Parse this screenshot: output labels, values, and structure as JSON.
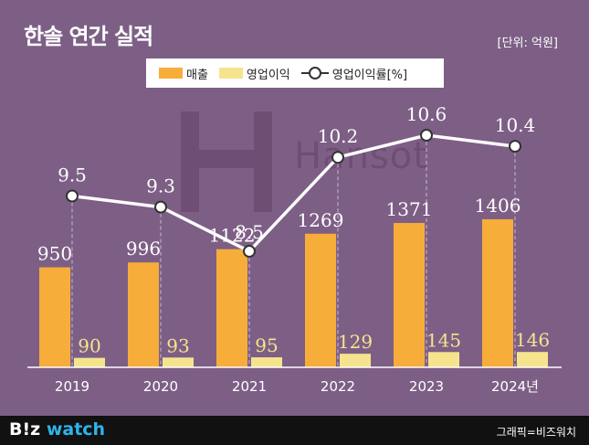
{
  "header": {
    "title": "한솔 연간 실적",
    "unit": "[단위: 억원]"
  },
  "legend": {
    "revenue": "매출",
    "operating_profit": "영업이익",
    "margin": "영업이익률[%]"
  },
  "watermark": "Hansot",
  "footer": {
    "brand_part1": "B!z",
    "brand_part2": " watch",
    "credit": "그래픽=비즈워치"
  },
  "colors": {
    "background": "#7d5f86",
    "revenue_bar": "#f7ad3a",
    "operating_profit_bar": "#f5e48d",
    "margin_line": "#ffffff",
    "footer": "#111111",
    "brand_accent": "#2fb4e9"
  },
  "chart_data": {
    "type": "bar",
    "categories": [
      "2019",
      "2020",
      "2021",
      "2022",
      "2023",
      "2024년"
    ],
    "series": [
      {
        "name": "매출",
        "type": "bar",
        "values": [
          950,
          996,
          1122,
          1269,
          1371,
          1406
        ]
      },
      {
        "name": "영업이익",
        "type": "bar",
        "values": [
          90,
          93,
          95,
          129,
          145,
          146
        ]
      },
      {
        "name": "영업이익률[%]",
        "type": "line",
        "values": [
          9.5,
          9.3,
          8.5,
          10.2,
          10.6,
          10.4
        ]
      }
    ],
    "labels": {
      "revenue": [
        "950",
        "996",
        "1122",
        "1269",
        "1371",
        "1406"
      ],
      "operating_profit": [
        "90",
        "93",
        "95",
        "129",
        "145",
        "146"
      ],
      "margin": [
        "9.5",
        "9.3",
        "8.5",
        "10.2",
        "10.6",
        "10.4"
      ]
    },
    "title": "한솔 연간 실적",
    "xlabel": "",
    "ylabel": "",
    "ylim": [
      0,
      1450
    ],
    "ylim_line": [
      8.0,
      11.0
    ],
    "grid": false,
    "legend_position": "top-center"
  }
}
